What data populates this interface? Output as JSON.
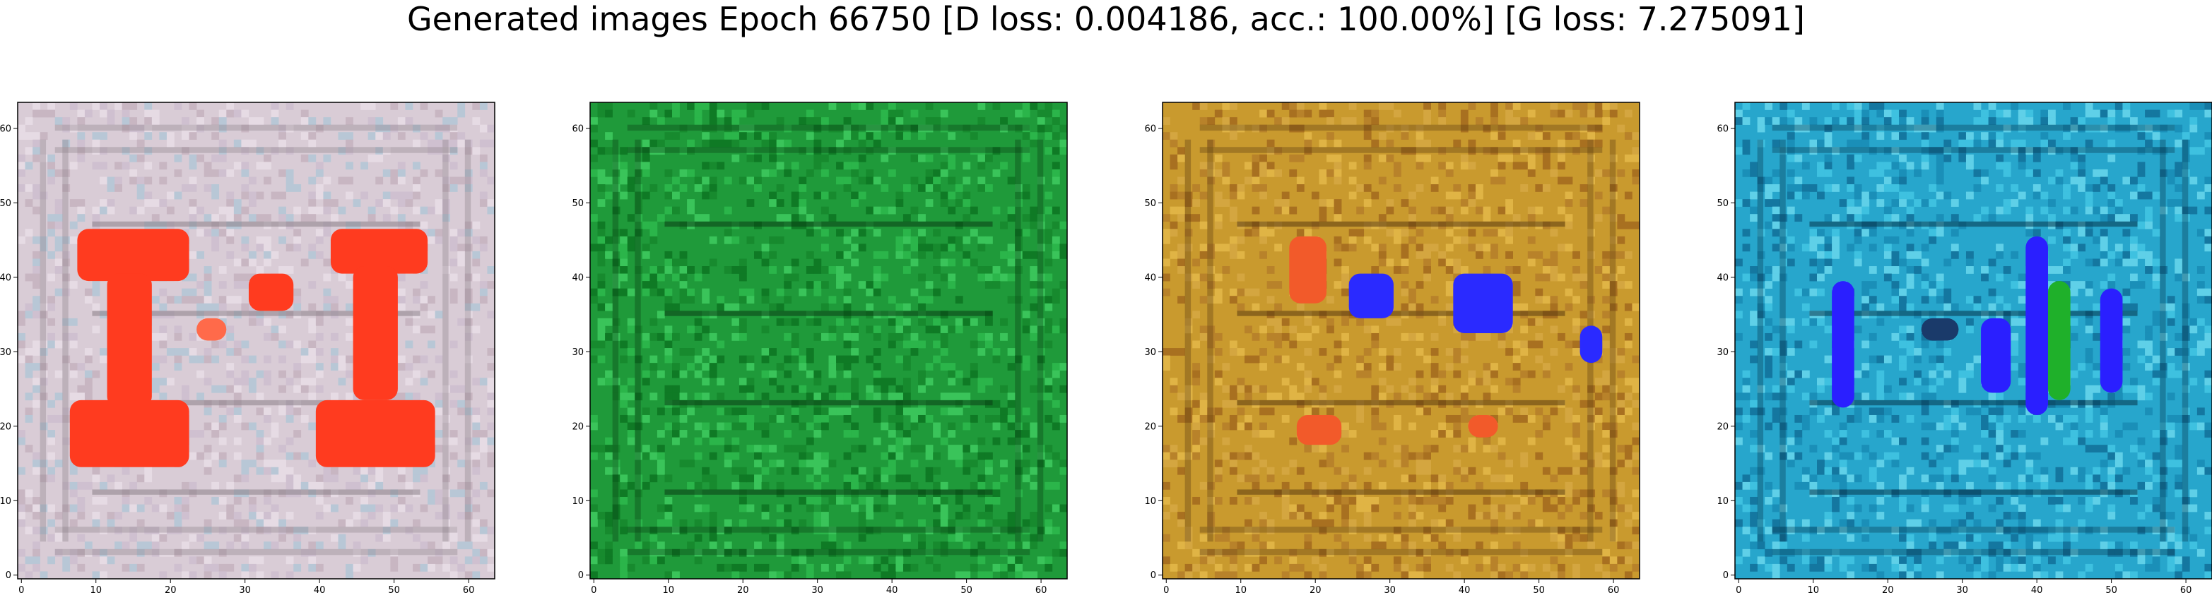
{
  "title": "Generated images Epoch 66750 [D loss: 0.004186, acc.: 100.00%] [G loss: 7.275091]",
  "chart_data": [
    {
      "type": "heatmap",
      "name": "generated-image-1",
      "x_ticks": [
        0,
        10,
        20,
        30,
        40,
        50,
        60
      ],
      "y_ticks": [
        0,
        10,
        20,
        30,
        40,
        50,
        60
      ],
      "xlim": [
        -0.5,
        63.5
      ],
      "ylim": [
        63.5,
        -0.5
      ],
      "grid": false,
      "background": "#d9ccd6",
      "line_color": "#8a7f88",
      "noise_colors": [
        "#cfc0d0",
        "#e6dbe4",
        "#b8c7d6",
        "#c8b6c2"
      ],
      "blobs": [
        {
          "x": 8,
          "y": 17,
          "w": 15,
          "h": 7,
          "color": "#ff3b1f"
        },
        {
          "x": 42,
          "y": 17,
          "w": 13,
          "h": 6,
          "color": "#ff3b1f"
        },
        {
          "x": 12,
          "y": 23,
          "w": 6,
          "h": 18,
          "color": "#ff3b1f"
        },
        {
          "x": 45,
          "y": 22,
          "w": 6,
          "h": 18,
          "color": "#ff3b1f"
        },
        {
          "x": 7,
          "y": 40,
          "w": 16,
          "h": 9,
          "color": "#ff3b1f"
        },
        {
          "x": 40,
          "y": 40,
          "w": 16,
          "h": 9,
          "color": "#ff3b1f"
        },
        {
          "x": 31,
          "y": 23,
          "w": 6,
          "h": 5,
          "color": "#ff3b1f"
        },
        {
          "x": 24,
          "y": 29,
          "w": 4,
          "h": 3,
          "color": "#ff6a4a"
        }
      ]
    },
    {
      "type": "heatmap",
      "name": "generated-image-2",
      "x_ticks": [
        0,
        10,
        20,
        30,
        40,
        50,
        60
      ],
      "y_ticks": [
        0,
        10,
        20,
        30,
        40,
        50,
        60
      ],
      "xlim": [
        -0.5,
        63.5
      ],
      "ylim": [
        63.5,
        -0.5
      ],
      "grid": false,
      "background": "#1f9a3a",
      "line_color": "#0a3d14",
      "noise_colors": [
        "#2bb54a",
        "#178a2e",
        "#3ac45a",
        "#0f7a25"
      ],
      "blobs": []
    },
    {
      "type": "heatmap",
      "name": "generated-image-3",
      "x_ticks": [
        0,
        10,
        20,
        30,
        40,
        50,
        60
      ],
      "y_ticks": [
        0,
        10,
        20,
        30,
        40,
        50,
        60
      ],
      "xlim": [
        -0.5,
        63.5
      ],
      "ylim": [
        63.5,
        -0.5
      ],
      "grid": false,
      "background": "#c99a2e",
      "line_color": "#5a3a10",
      "noise_colors": [
        "#e0b445",
        "#b8822a",
        "#d4a640",
        "#a87020"
      ],
      "blobs": [
        {
          "x": 17,
          "y": 18,
          "w": 5,
          "h": 9,
          "color": "#f25a2a"
        },
        {
          "x": 25,
          "y": 23,
          "w": 6,
          "h": 6,
          "color": "#2a2aff"
        },
        {
          "x": 39,
          "y": 23,
          "w": 8,
          "h": 8,
          "color": "#2a2aff"
        },
        {
          "x": 56,
          "y": 30,
          "w": 3,
          "h": 5,
          "color": "#2a2aff"
        },
        {
          "x": 18,
          "y": 42,
          "w": 6,
          "h": 4,
          "color": "#f25a2a"
        },
        {
          "x": 41,
          "y": 42,
          "w": 4,
          "h": 3,
          "color": "#f25a2a"
        }
      ]
    },
    {
      "type": "heatmap",
      "name": "generated-image-4",
      "x_ticks": [
        0,
        10,
        20,
        30,
        40,
        50,
        60
      ],
      "y_ticks": [
        0,
        10,
        20,
        30,
        40,
        50,
        60
      ],
      "xlim": [
        -0.5,
        63.5
      ],
      "ylim": [
        63.5,
        -0.5
      ],
      "grid": false,
      "background": "#27a6cc",
      "line_color": "#06344a",
      "noise_colors": [
        "#3ec1e0",
        "#1a8fb8",
        "#5fd0e8",
        "#1477a0"
      ],
      "blobs": [
        {
          "x": 13,
          "y": 24,
          "w": 3,
          "h": 17,
          "color": "#2a1fff"
        },
        {
          "x": 33,
          "y": 29,
          "w": 4,
          "h": 10,
          "color": "#2a1fff"
        },
        {
          "x": 39,
          "y": 18,
          "w": 3,
          "h": 24,
          "color": "#2a1fff"
        },
        {
          "x": 42,
          "y": 24,
          "w": 3,
          "h": 16,
          "color": "#1fb02a"
        },
        {
          "x": 49,
          "y": 25,
          "w": 3,
          "h": 14,
          "color": "#2a1fff"
        },
        {
          "x": 25,
          "y": 29,
          "w": 5,
          "h": 3,
          "color": "#1a3a6a"
        }
      ]
    }
  ]
}
